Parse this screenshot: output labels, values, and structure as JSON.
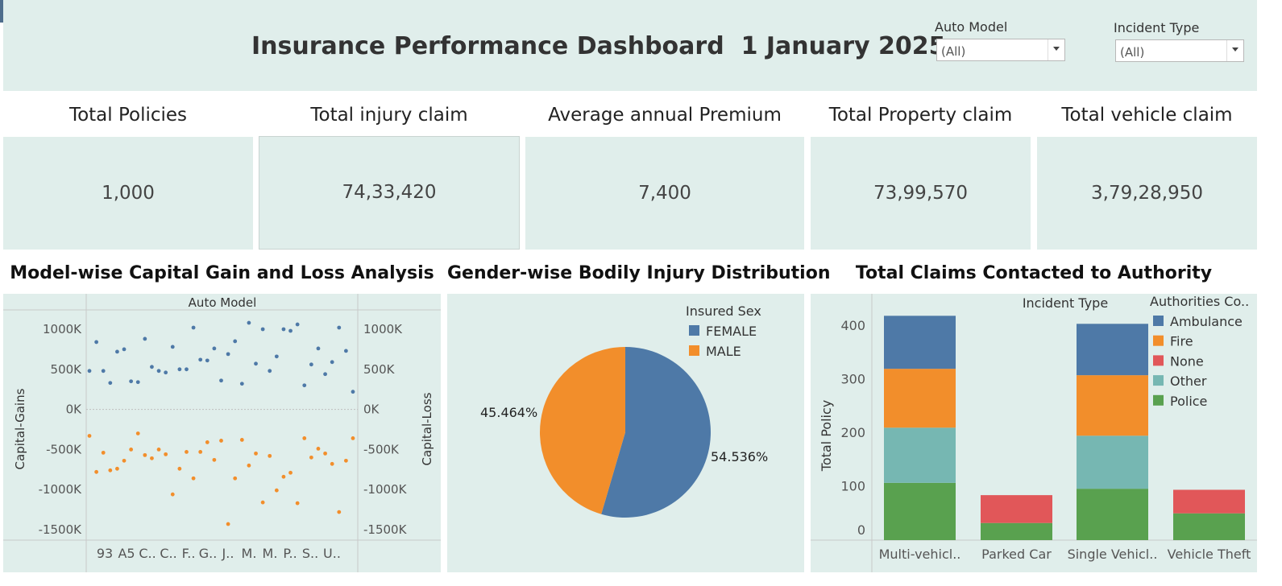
{
  "dashboard": {
    "title": "Insurance Performance Dashboard  1 January 2025"
  },
  "filters": [
    {
      "label": "Auto Model",
      "value": "(All)"
    },
    {
      "label": "Incident Type",
      "value": "(All)"
    }
  ],
  "kpis": [
    {
      "title": "Total Policies",
      "value": "1,000"
    },
    {
      "title": "Total injury claim",
      "value": "74,33,420"
    },
    {
      "title": "Average annual Premium",
      "value": "7,400"
    },
    {
      "title": "Total Property claim",
      "value": "73,99,570"
    },
    {
      "title": "Total vehicle claim",
      "value": "3,79,28,950"
    }
  ],
  "colors": {
    "panel_bg": "#e0eeeb",
    "blue": "#4e79a7",
    "orange": "#f28e2b",
    "red": "#e15759",
    "teal": "#76b7b2",
    "green": "#59a14f"
  },
  "chart_data": [
    {
      "type": "scatter",
      "title": "Model-wise Capital Gain and Loss Analysis",
      "header": "Auto Model",
      "ylabel_left": "Capital-Gains",
      "ylabel_right": "Capital-Loss",
      "y_ticks": [
        "1000K",
        "500K",
        "0K",
        "-500K",
        "-1000K",
        "-1500K"
      ],
      "ylim": [
        -1500,
        1000
      ],
      "x_tick_labels": [
        "93",
        "A5",
        "C..",
        "C..",
        "F..",
        "G..",
        "J..",
        "M.",
        "M.",
        "P..",
        "S..",
        "U.."
      ],
      "n_points": 39,
      "series": [
        {
          "name": "Capital-Gains",
          "values": [
            480,
            840,
            480,
            330,
            720,
            750,
            350,
            340,
            880,
            530,
            480,
            460,
            780,
            500,
            500,
            1020,
            620,
            610,
            760,
            360,
            690,
            850,
            320,
            1080,
            570,
            1000,
            480,
            660,
            1000,
            980,
            1060,
            300,
            560,
            760,
            440,
            590,
            1020,
            730,
            220
          ]
        },
        {
          "name": "Capital-Loss",
          "values": [
            -330,
            -780,
            -540,
            -760,
            -740,
            -640,
            -500,
            -300,
            -570,
            -610,
            -500,
            -560,
            -1060,
            -740,
            -530,
            -860,
            -530,
            -410,
            -630,
            -390,
            -1430,
            -860,
            -380,
            -700,
            -550,
            -1160,
            -580,
            -1010,
            -840,
            -790,
            -1170,
            -360,
            -600,
            -490,
            -550,
            -680,
            -1280,
            -640,
            -360
          ]
        }
      ]
    },
    {
      "type": "pie",
      "title": "Gender-wise Bodily Injury Distribution",
      "legend_title": "Insured Sex",
      "categories": [
        "FEMALE",
        "MALE"
      ],
      "values": [
        54.536,
        45.464
      ],
      "labels": [
        "54.536%",
        "45.464%"
      ]
    },
    {
      "type": "bar",
      "stacked": true,
      "title": "Total Claims Contacted to Authority",
      "header": "Incident Type",
      "ylabel": "Total Policy",
      "legend_title": "Authorities Co..",
      "ylim": [
        0,
        430
      ],
      "y_ticks": [
        0,
        100,
        200,
        300,
        400
      ],
      "categories": [
        "Multi-vehicl..",
        "Parked Car",
        "Single Vehicl..",
        "Vehicle Theft"
      ],
      "series": [
        {
          "name": "Police",
          "values": [
            107,
            32,
            96,
            50
          ]
        },
        {
          "name": "Other",
          "values": [
            103,
            0,
            99,
            0
          ]
        },
        {
          "name": "None",
          "values": [
            0,
            52,
            0,
            44
          ]
        },
        {
          "name": "Fire",
          "values": [
            110,
            0,
            113,
            0
          ]
        },
        {
          "name": "Ambulance",
          "values": [
            99,
            0,
            96,
            0
          ]
        }
      ],
      "legend_order": [
        "Ambulance",
        "Fire",
        "None",
        "Other",
        "Police"
      ]
    }
  ]
}
